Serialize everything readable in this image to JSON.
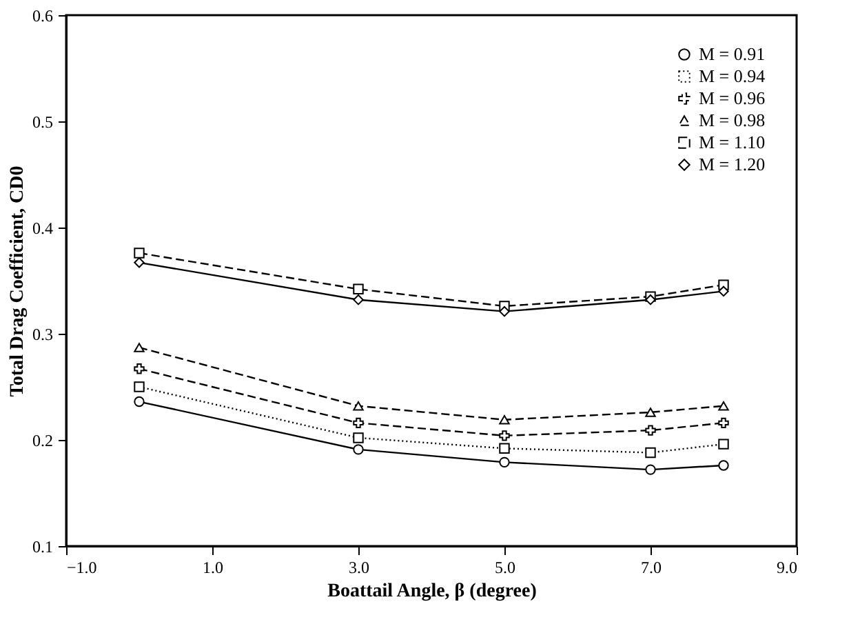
{
  "chart_data": {
    "type": "line",
    "xlabel": "Boattail Angle, β (degree)",
    "ylabel": "Total Drag Coefficient, CD0",
    "x": [
      0,
      3,
      5,
      7,
      8
    ],
    "series": [
      {
        "name": "M = 0.91",
        "color": "#000000",
        "marker": "circle",
        "line_style": "solid",
        "values": [
          0.236,
          0.191,
          0.179,
          0.172,
          0.176
        ]
      },
      {
        "name": "M = 0.94",
        "color": "#000000",
        "marker": "square",
        "line_style": "dotted",
        "values": [
          0.25,
          0.202,
          0.192,
          0.188,
          0.196
        ]
      },
      {
        "name": "M = 0.96",
        "color": "#000000",
        "marker": "cross",
        "line_style": "dashed",
        "values": [
          0.267,
          0.216,
          0.204,
          0.209,
          0.216
        ]
      },
      {
        "name": "M = 0.98",
        "color": "#000000",
        "marker": "triangle",
        "line_style": "dashed",
        "values": [
          0.287,
          0.232,
          0.219,
          0.226,
          0.232
        ]
      },
      {
        "name": "M = 1.10",
        "color": "#000000",
        "marker": "square",
        "line_style": "dashed",
        "values": [
          0.376,
          0.342,
          0.326,
          0.335,
          0.346
        ]
      },
      {
        "name": "M = 1.20",
        "color": "#000000",
        "marker": "diamond",
        "line_style": "solid",
        "values": [
          0.367,
          0.332,
          0.321,
          0.332,
          0.34
        ]
      }
    ],
    "xlim": [
      -1,
      9
    ],
    "xticks": [
      {
        "value": -1,
        "label": "−1.0"
      },
      {
        "value": 1,
        "label": "1.0"
      },
      {
        "value": 3,
        "label": "3.0"
      },
      {
        "value": 5,
        "label": "5.0"
      },
      {
        "value": 7,
        "label": "7.0"
      },
      {
        "value": 9,
        "label": "9.0"
      }
    ],
    "ylim": [
      0.1,
      0.6
    ],
    "yticks": [
      0.1,
      0.2,
      0.3,
      0.4,
      0.5,
      0.6
    ],
    "legend": "top right",
    "grid": false
  }
}
